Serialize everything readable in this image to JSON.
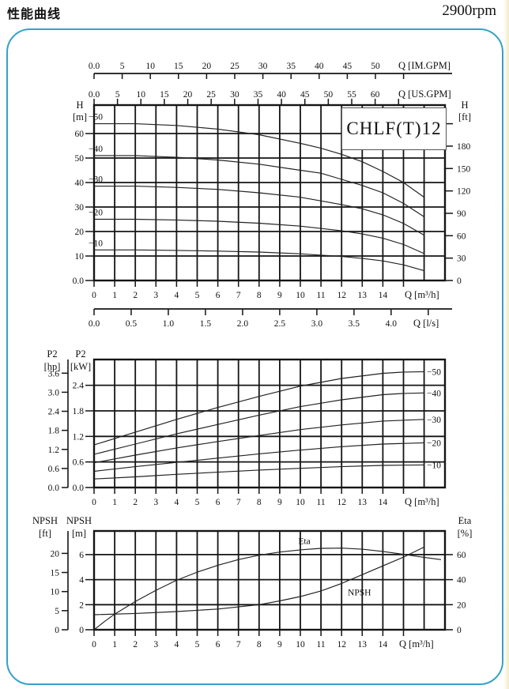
{
  "page": {
    "title": "性能曲线",
    "rpm": "2900rpm",
    "model": "CHLF(T)12",
    "accent_color": "#36a1c8"
  },
  "chart_data": [
    {
      "id": "head",
      "type": "line",
      "title": "CHLF(T)12",
      "x_axis_m3h": {
        "label": "Q [m³/h]",
        "ticks": [
          0,
          1,
          2,
          3,
          4,
          5,
          6,
          7,
          8,
          9,
          10,
          11,
          12,
          13,
          14,
          15
        ],
        "tick_labels": [
          "0",
          "1",
          "2",
          "3",
          "4",
          "5",
          "6",
          "7",
          "8",
          "9",
          "10",
          "11",
          "12",
          "13",
          "14",
          ""
        ]
      },
      "x_scale_ls": {
        "label": "Q [l/s]",
        "m3h_per_unit": 3.6,
        "ticks": [
          0,
          0.5,
          1,
          1.5,
          2,
          2.5,
          3,
          3.5,
          4,
          4.5
        ],
        "tick_labels": [
          "0.0",
          "0.5",
          "1.0",
          "1.5",
          "2.0",
          "2.5",
          "3.0",
          "3.5",
          "4.0",
          ""
        ]
      },
      "x_scale_us_gpm": {
        "label": "Q [US.GPM]",
        "m3h_per_unit": 0.2271,
        "ticks": [
          0,
          5,
          10,
          15,
          20,
          25,
          30,
          35,
          40,
          45,
          50,
          55,
          60,
          65
        ],
        "tick_labels": [
          "0.0",
          "5",
          "10",
          "15",
          "20",
          "25",
          "30",
          "35",
          "40",
          "45",
          "50",
          "55",
          "60",
          ""
        ]
      },
      "x_scale_im_gpm": {
        "label": "Q [IM.GPM]",
        "m3h_per_unit": 0.2728,
        "ticks": [
          0,
          5,
          10,
          15,
          20,
          25,
          30,
          35,
          40,
          45,
          50,
          55
        ],
        "tick_labels": [
          "0.0",
          "5",
          "10",
          "15",
          "20",
          "25",
          "30",
          "35",
          "40",
          "45",
          "50",
          ""
        ]
      },
      "y_left": {
        "title": "H",
        "unit": "[m]",
        "ticks": [
          0,
          10,
          20,
          30,
          40,
          50,
          60
        ],
        "tick_labels": [
          "0.0",
          "10",
          "20",
          "30",
          "40",
          "50",
          "60"
        ]
      },
      "y_right": {
        "title": "H",
        "unit": "[ft]",
        "m_per_unit": 0.3048,
        "ticks": [
          0,
          30,
          60,
          90,
          120,
          150,
          180,
          210
        ],
        "tick_labels": [
          "0",
          "30",
          "60",
          "90",
          "120",
          "150",
          "180",
          ""
        ]
      },
      "xlim": [
        0,
        17
      ],
      "ylim": [
        0,
        71.6
      ],
      "grid": true,
      "series": [
        {
          "name": "−50",
          "points": [
            [
              0,
              64
            ],
            [
              2,
              64
            ],
            [
              4,
              63.3
            ],
            [
              6,
              61.8
            ],
            [
              8,
              59.5
            ],
            [
              10,
              56
            ],
            [
              11,
              54
            ],
            [
              12,
              51.5
            ],
            [
              13,
              48.5
            ],
            [
              14,
              44.5
            ],
            [
              15,
              40
            ],
            [
              16,
              34
            ]
          ]
        },
        {
          "name": "−40",
          "points": [
            [
              0,
              51
            ],
            [
              2,
              51
            ],
            [
              4,
              50.3
            ],
            [
              6,
              49.2
            ],
            [
              8,
              47.5
            ],
            [
              10,
              45
            ],
            [
              11,
              43.8
            ],
            [
              12,
              41.3
            ],
            [
              13,
              38.8
            ],
            [
              14,
              35.8
            ],
            [
              15,
              31.5
            ],
            [
              16,
              26
            ]
          ]
        },
        {
          "name": "−30",
          "points": [
            [
              0,
              38.5
            ],
            [
              2,
              38.5
            ],
            [
              4,
              38
            ],
            [
              6,
              37.2
            ],
            [
              8,
              35.8
            ],
            [
              10,
              34
            ],
            [
              12,
              31
            ],
            [
              13,
              29.3
            ],
            [
              14,
              26.8
            ],
            [
              15,
              23.3
            ],
            [
              16,
              18.5
            ]
          ]
        },
        {
          "name": "−20",
          "points": [
            [
              0,
              25
            ],
            [
              2,
              25
            ],
            [
              4,
              24.7
            ],
            [
              6,
              24.2
            ],
            [
              8,
              23.4
            ],
            [
              10,
              22.2
            ],
            [
              12,
              20.3
            ],
            [
              13,
              19
            ],
            [
              14,
              17.3
            ],
            [
              15,
              14.7
            ],
            [
              16,
              11
            ]
          ]
        },
        {
          "name": "−10",
          "points": [
            [
              0,
              12.5
            ],
            [
              2,
              12.5
            ],
            [
              4,
              12.3
            ],
            [
              6,
              12
            ],
            [
              8,
              11.6
            ],
            [
              10,
              10.9
            ],
            [
              12,
              9.8
            ],
            [
              13,
              9
            ],
            [
              14,
              8
            ],
            [
              15,
              6.4
            ],
            [
              16,
              4
            ]
          ]
        }
      ]
    },
    {
      "id": "power",
      "type": "line",
      "x_axis_m3h": {
        "label": "Q [m³/h]",
        "ticks": [
          0,
          1,
          2,
          3,
          4,
          5,
          6,
          7,
          8,
          9,
          10,
          11,
          12,
          13,
          14,
          15
        ],
        "tick_labels": [
          "0",
          "1",
          "2",
          "3",
          "4",
          "5",
          "6",
          "7",
          "8",
          "9",
          "10",
          "11",
          "12",
          "13",
          "14",
          ""
        ]
      },
      "y_left_inner": {
        "title": "P2",
        "unit": "[kW]",
        "ticks": [
          0,
          0.6,
          1.2,
          1.8,
          2.4
        ],
        "tick_labels": [
          "0.0",
          "0.6",
          "1.2",
          "1.8",
          "2.4"
        ]
      },
      "y_left_outer": {
        "title": "P2",
        "unit": "[hp]",
        "kw_per_unit": 0.7457,
        "ticks": [
          0,
          0.6,
          1.2,
          1.8,
          2.4,
          3.0,
          3.6
        ],
        "tick_labels": [
          "0.0",
          "0.6",
          "1.2",
          "1.8",
          "2.4",
          "3.0",
          "3.6"
        ]
      },
      "xlim": [
        0,
        17
      ],
      "ylim": [
        0,
        3.0
      ],
      "grid": true,
      "series": [
        {
          "name": "−50",
          "points": [
            [
              0,
              1.0
            ],
            [
              2,
              1.3
            ],
            [
              4,
              1.6
            ],
            [
              6,
              1.88
            ],
            [
              8,
              2.14
            ],
            [
              10,
              2.38
            ],
            [
              12,
              2.56
            ],
            [
              14,
              2.68
            ],
            [
              15,
              2.71
            ],
            [
              16,
              2.72
            ]
          ]
        },
        {
          "name": "−40",
          "points": [
            [
              0,
              0.78
            ],
            [
              2,
              1.02
            ],
            [
              4,
              1.26
            ],
            [
              6,
              1.48
            ],
            [
              8,
              1.7
            ],
            [
              10,
              1.9
            ],
            [
              12,
              2.06
            ],
            [
              14,
              2.18
            ],
            [
              15,
              2.21
            ],
            [
              16,
              2.22
            ]
          ]
        },
        {
          "name": "−30",
          "points": [
            [
              0,
              0.58
            ],
            [
              2,
              0.76
            ],
            [
              4,
              0.93
            ],
            [
              6,
              1.08
            ],
            [
              8,
              1.22
            ],
            [
              10,
              1.36
            ],
            [
              12,
              1.47
            ],
            [
              14,
              1.56
            ],
            [
              16,
              1.6
            ]
          ]
        },
        {
          "name": "−20",
          "points": [
            [
              0,
              0.38
            ],
            [
              2,
              0.49
            ],
            [
              4,
              0.59
            ],
            [
              6,
              0.69
            ],
            [
              8,
              0.79
            ],
            [
              10,
              0.88
            ],
            [
              12,
              0.96
            ],
            [
              14,
              1.02
            ],
            [
              16,
              1.05
            ]
          ]
        },
        {
          "name": "−10",
          "points": [
            [
              0,
              0.2
            ],
            [
              2,
              0.25
            ],
            [
              4,
              0.31
            ],
            [
              6,
              0.36
            ],
            [
              8,
              0.41
            ],
            [
              10,
              0.45
            ],
            [
              12,
              0.49
            ],
            [
              14,
              0.52
            ],
            [
              16,
              0.53
            ]
          ]
        }
      ]
    },
    {
      "id": "npsh_eta",
      "type": "line",
      "x_axis_m3h": {
        "label": "Q [m³/h]",
        "ticks": [
          0,
          1,
          2,
          3,
          4,
          5,
          6,
          7,
          8,
          9,
          10,
          11,
          12,
          13,
          14,
          15
        ],
        "tick_labels": [
          "0",
          "1",
          "2",
          "3",
          "4",
          "5",
          "6",
          "7",
          "8",
          "9",
          "10",
          "11",
          "12",
          "13",
          "14",
          ""
        ]
      },
      "y_left_inner": {
        "title": "NPSH",
        "unit": "[m]",
        "ticks": [
          0,
          2,
          4,
          6
        ],
        "tick_labels": [
          "0",
          "2",
          "4",
          "6"
        ]
      },
      "y_left_outer": {
        "title": "NPSH",
        "unit": "[ft]",
        "m_per_unit": 0.3048,
        "ticks": [
          0,
          5,
          10,
          15,
          20
        ],
        "tick_labels": [
          "0",
          "5",
          "10",
          "15",
          "20"
        ]
      },
      "y_right": {
        "title": "Eta",
        "unit": "[%]",
        "ticks": [
          0,
          20,
          40,
          60
        ],
        "tick_labels": [
          "0",
          "20",
          "40",
          "60"
        ]
      },
      "xlim": [
        0,
        17
      ],
      "ylim_m": [
        0,
        7.9
      ],
      "ylim_pct": [
        0,
        79
      ],
      "grid": true,
      "series": [
        {
          "name": "Eta",
          "axis": "percent",
          "label_at": [
            9.9,
            68.5
          ],
          "points": [
            [
              0,
              0
            ],
            [
              0.5,
              6.5
            ],
            [
              1,
              12.5
            ],
            [
              2,
              22.5
            ],
            [
              3,
              31.5
            ],
            [
              4,
              39.5
            ],
            [
              5,
              46
            ],
            [
              6,
              51.5
            ],
            [
              7,
              56
            ],
            [
              8,
              59.5
            ],
            [
              9,
              62
            ],
            [
              10,
              63.8
            ],
            [
              11,
              65
            ],
            [
              12,
              65.2
            ],
            [
              13,
              64.3
            ],
            [
              14,
              62.5
            ],
            [
              15,
              60.2
            ],
            [
              16,
              57.8
            ],
            [
              16.8,
              56
            ]
          ]
        },
        {
          "name": "NPSH",
          "axis": "m",
          "label_at": [
            12.3,
            2.75
          ],
          "points": [
            [
              0,
              1.2
            ],
            [
              2,
              1.3
            ],
            [
              4,
              1.45
            ],
            [
              6,
              1.65
            ],
            [
              8,
              2.0
            ],
            [
              9,
              2.3
            ],
            [
              10,
              2.65
            ],
            [
              11,
              3.1
            ],
            [
              12,
              3.7
            ],
            [
              13,
              4.4
            ],
            [
              14,
              5.1
            ],
            [
              15,
              5.8
            ],
            [
              16,
              6.6
            ]
          ]
        }
      ]
    }
  ]
}
